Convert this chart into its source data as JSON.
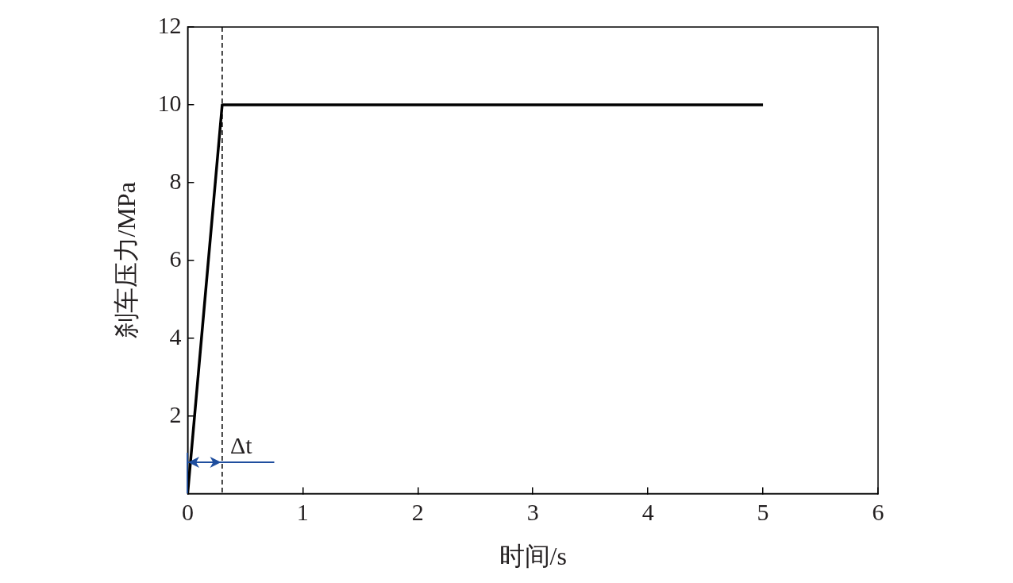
{
  "chart_data": {
    "type": "line",
    "xlabel": "时间/s",
    "ylabel": "刹车压力/MPa",
    "x": [
      0,
      0.3,
      5
    ],
    "series": [
      {
        "color": "#000000",
        "values": [
          0,
          10,
          10
        ]
      }
    ],
    "xlim": [
      0,
      6
    ],
    "xticks": [
      0,
      1,
      2,
      3,
      4,
      5,
      6
    ],
    "ylim": [
      0,
      12
    ],
    "yticks": [
      2,
      4,
      6,
      8,
      10,
      12
    ],
    "ref_lines": [
      {
        "axis": "x",
        "value": 0.3,
        "color": "#000000",
        "line_style": "dashed"
      }
    ],
    "annotations": [
      {
        "text": "Δt",
        "x": 0.3,
        "y": 0.8
      }
    ],
    "grid": false,
    "legend": false,
    "marker": "none",
    "line_style": "solid"
  }
}
